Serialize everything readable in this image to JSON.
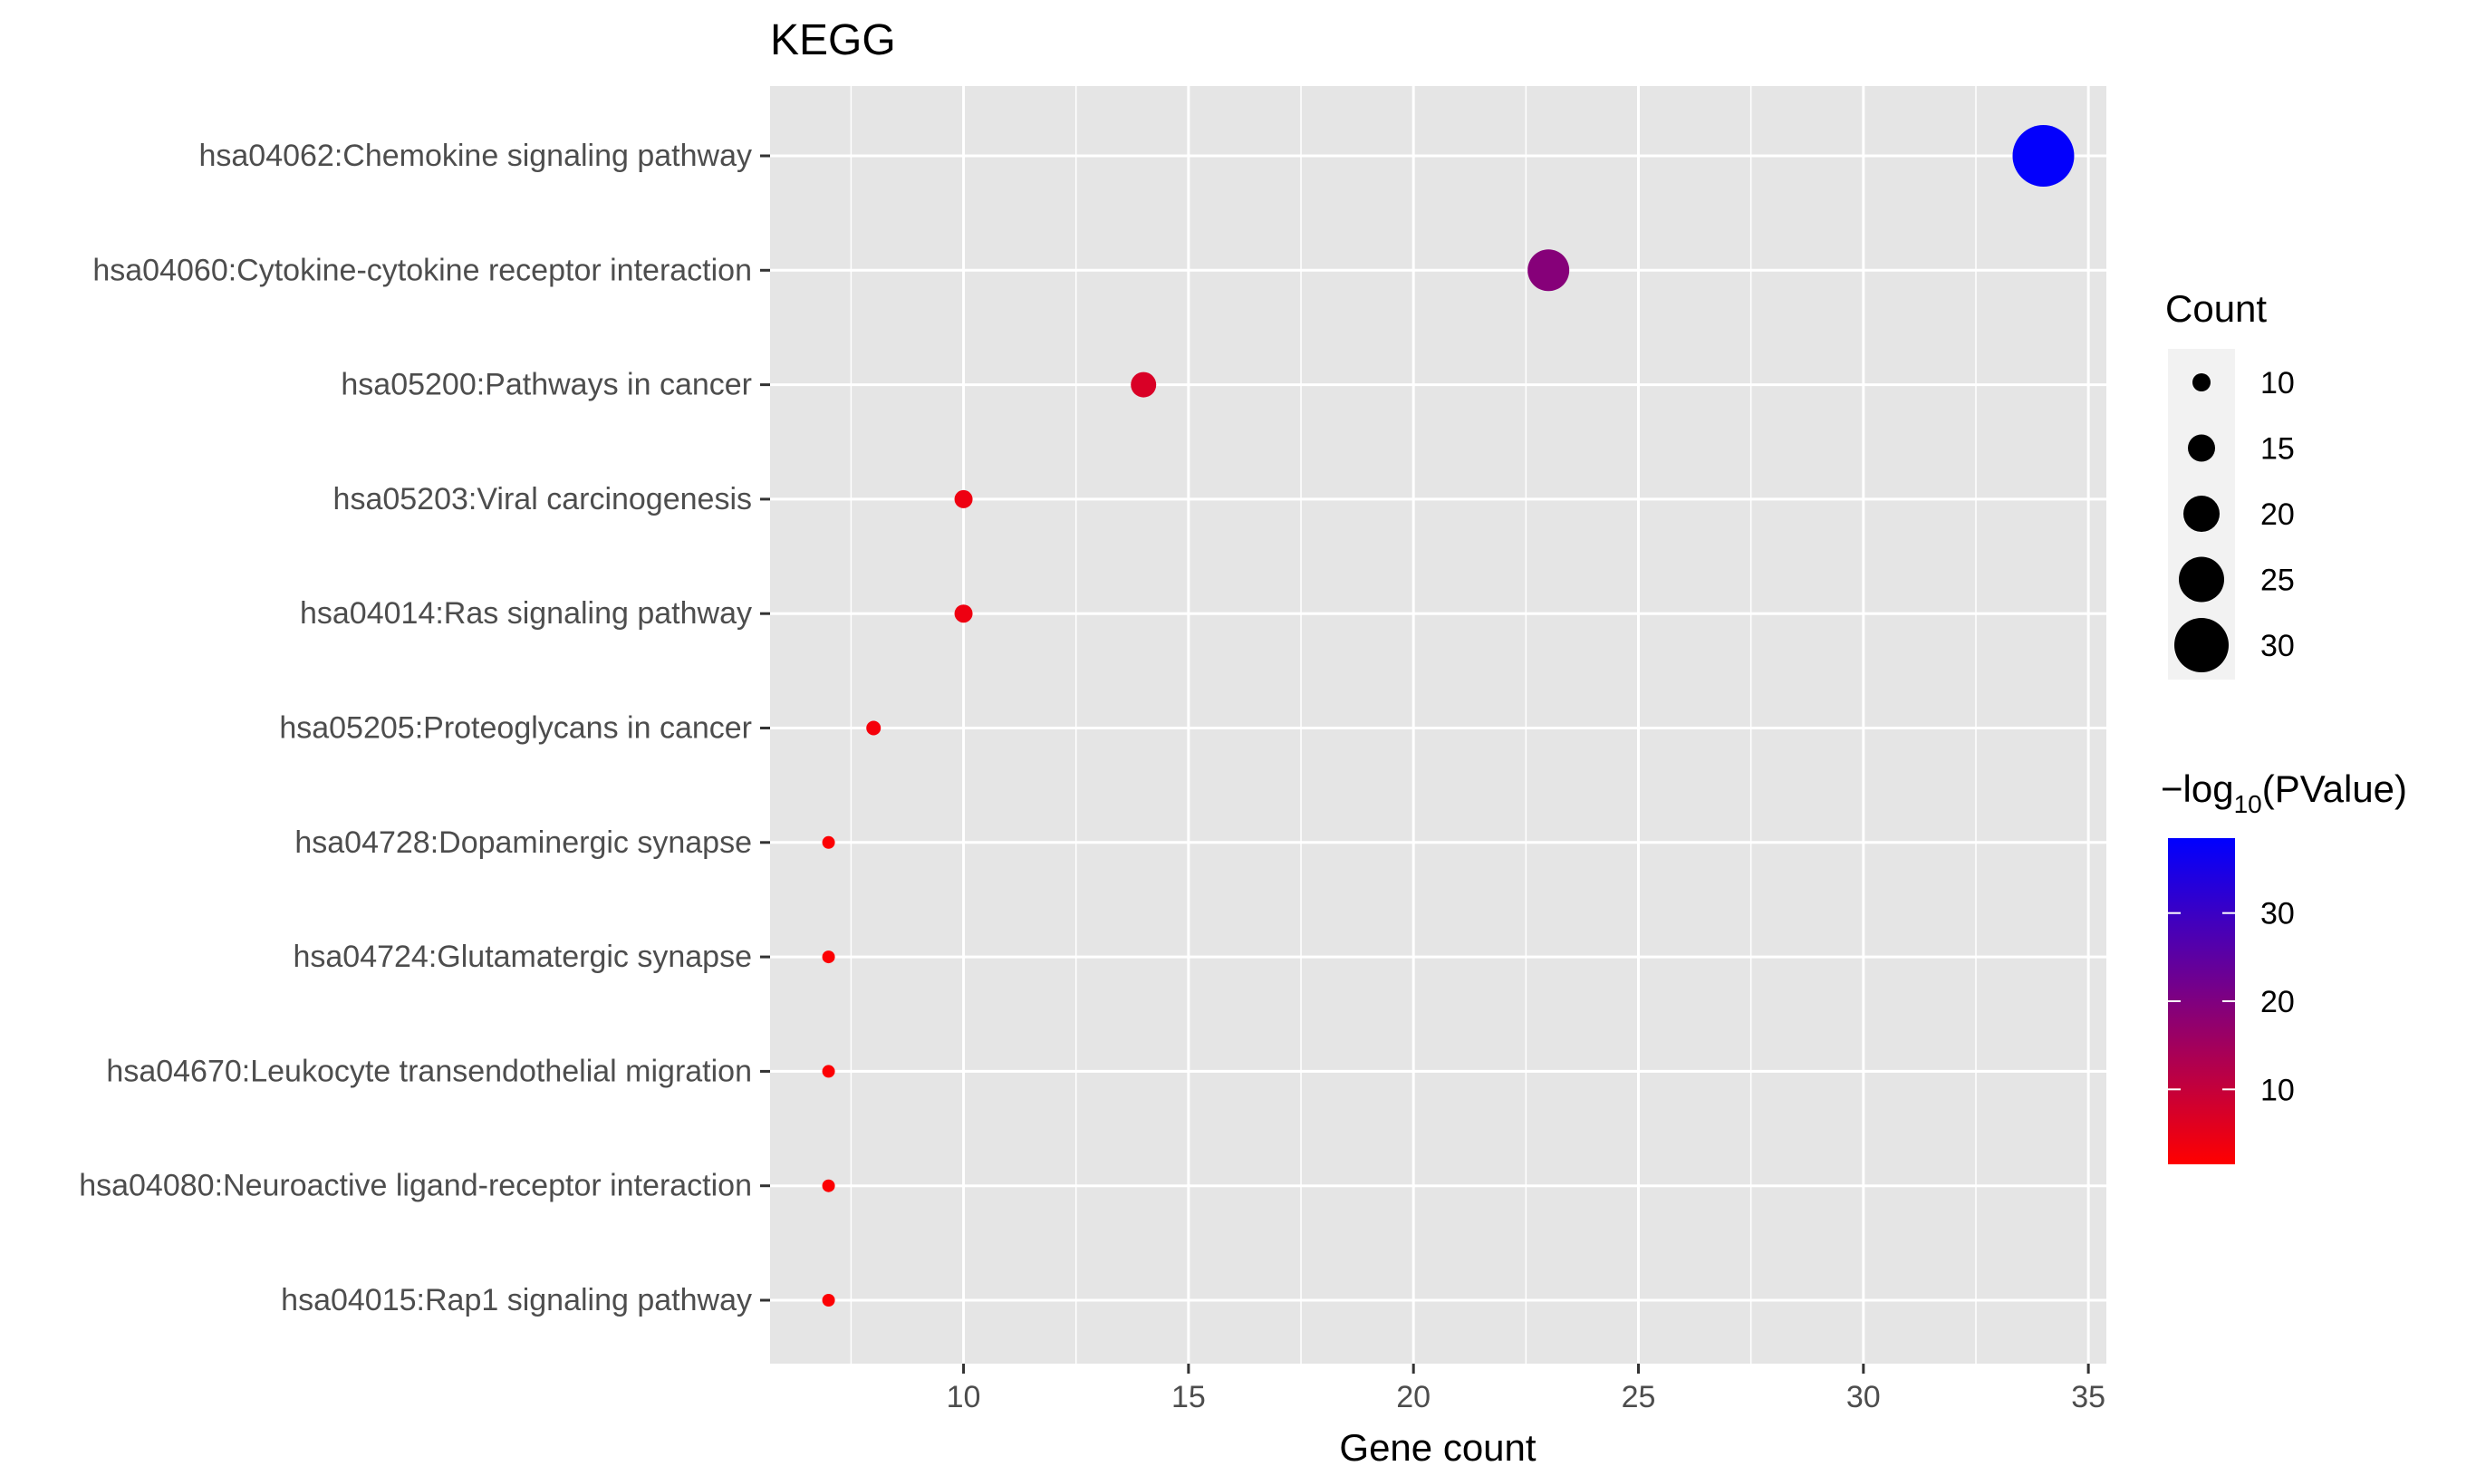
{
  "chart_data": {
    "type": "scatter",
    "title": "KEGG",
    "xlabel": "Gene count",
    "ylabel": "",
    "xlim": [
      5.7,
      35.4
    ],
    "x_ticks": [
      10,
      15,
      20,
      25,
      30,
      35
    ],
    "grid": true,
    "categories": [
      "hsa04062:Chemokine signaling pathway",
      "hsa04060:Cytokine-cytokine receptor interaction",
      "hsa05200:Pathways in cancer",
      "hsa05203:Viral carcinogenesis",
      "hsa04014:Ras signaling pathway",
      "hsa05205:Proteoglycans in cancer",
      "hsa04728:Dopaminergic synapse",
      "hsa04724:Glutamatergic synapse",
      "hsa04670:Leukocyte transendothelial migration",
      "hsa04080:Neuroactive ligand-receptor interaction",
      "hsa04015:Rap1 signaling pathway"
    ],
    "values": [
      34,
      23,
      14,
      10,
      10,
      8,
      7,
      7,
      7,
      7,
      7
    ],
    "neg_log10_pvalue": [
      38,
      19,
      7,
      4,
      4,
      3,
      2,
      2,
      2,
      2,
      2
    ],
    "legend_size": {
      "title": "Count",
      "breaks": [
        10,
        15,
        20,
        25,
        30
      ]
    },
    "legend_color": {
      "title_prefix": "−log",
      "title_sub": "10",
      "title_suffix": "(PValue)",
      "breaks": [
        10,
        20,
        30
      ],
      "range": [
        1.5,
        38.5
      ],
      "low_color": "#FF0000",
      "high_color": "#0000FF"
    },
    "size_range": [
      7,
      34
    ],
    "legend_position": "right",
    "panel_background": "#E5E5E5"
  }
}
